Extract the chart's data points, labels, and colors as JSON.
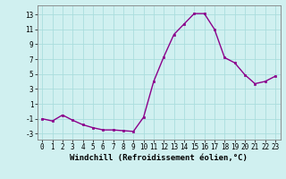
{
  "x": [
    0,
    1,
    2,
    3,
    4,
    5,
    6,
    7,
    8,
    9,
    10,
    11,
    12,
    13,
    14,
    15,
    16,
    17,
    18,
    19,
    20,
    21,
    22,
    23
  ],
  "y": [
    -1.0,
    -1.3,
    -0.5,
    -1.2,
    -1.8,
    -2.2,
    -2.5,
    -2.5,
    -2.6,
    -2.7,
    -0.8,
    4.0,
    7.3,
    10.3,
    11.7,
    13.1,
    13.1,
    11.0,
    7.2,
    6.5,
    4.9,
    3.7,
    4.0,
    4.7
  ],
  "line_color": "#8b008b",
  "marker": "s",
  "marker_size": 1.8,
  "linewidth": 1.0,
  "xlabel": "Windchill (Refroidissement éolien,°C)",
  "xlabel_fontsize": 6.5,
  "xlim": [
    -0.5,
    23.5
  ],
  "ylim": [
    -3.8,
    14.2
  ],
  "yticks": [
    -3,
    -1,
    1,
    3,
    5,
    7,
    9,
    11,
    13
  ],
  "xtick_labels": [
    "0",
    "1",
    "2",
    "3",
    "4",
    "5",
    "6",
    "7",
    "8",
    "9",
    "10",
    "11",
    "12",
    "13",
    "14",
    "15",
    "16",
    "17",
    "18",
    "19",
    "20",
    "21",
    "22",
    "23"
  ],
  "grid_color": "#aadddd",
  "bg_color": "#d0f0f0",
  "tick_fontsize": 5.5,
  "spine_color": "#808080"
}
